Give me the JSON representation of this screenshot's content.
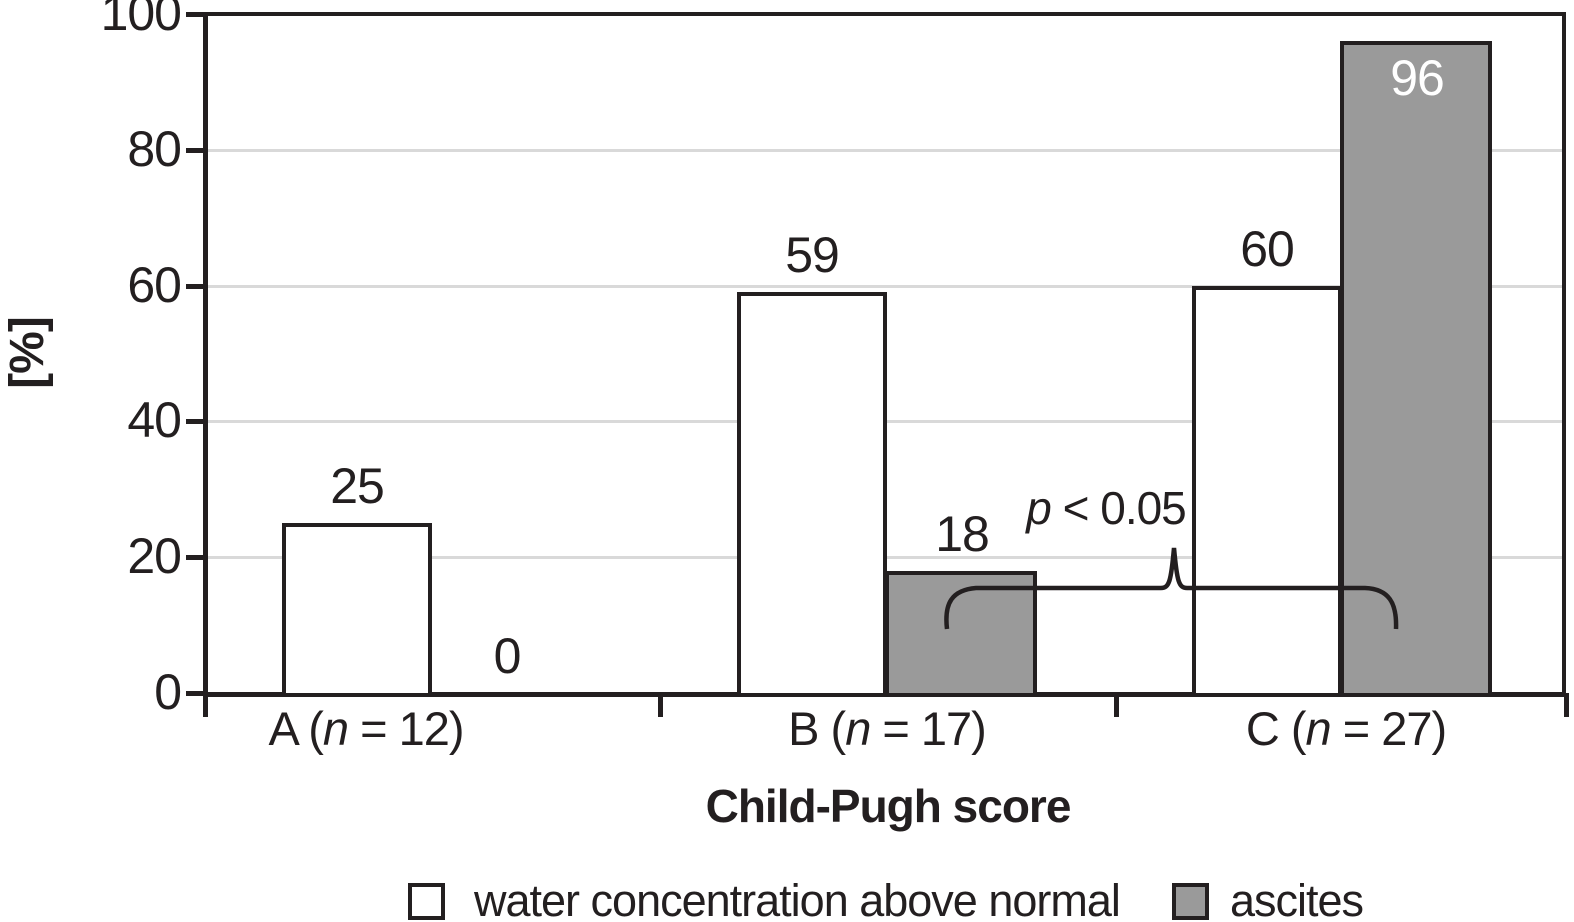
{
  "colors": {
    "ink": "#231f20",
    "grid_line": "#d9d9d9",
    "ascites_gray": "#9a9a9a",
    "background": "#ffffff",
    "inside_label": "#ffffff"
  },
  "chart_data": {
    "type": "bar",
    "title": "",
    "xlabel": "Child-Pugh score",
    "ylabel": "[%]",
    "ylim": [
      0,
      100
    ],
    "yticks": [
      0,
      20,
      40,
      60,
      80,
      100
    ],
    "grid": "horizontal light-gray gridlines at 20/40/60/80; black frame around plot",
    "legend_position": "bottom, below x-axis title",
    "categories": [
      {
        "full": "A (n = 12)",
        "prefix": "A (",
        "n_symbol": "n",
        "suffix": " = 12)"
      },
      {
        "full": "B (n = 17)",
        "prefix": "B (",
        "n_symbol": "n",
        "suffix": " = 17)"
      },
      {
        "full": "C (n = 27)",
        "prefix": "C (",
        "n_symbol": "n",
        "suffix": " = 27)"
      }
    ],
    "series": [
      {
        "name": "water concentration above normal",
        "fill": "#ffffff",
        "values": [
          25,
          59,
          60
        ]
      },
      {
        "name": "ascites",
        "fill": "#9a9a9a",
        "values": [
          0,
          18,
          96
        ]
      }
    ],
    "value_labels": [
      [
        "25",
        "59",
        "60"
      ],
      [
        "0",
        "18",
        "96"
      ]
    ],
    "annotation": {
      "full": "p < 0.05",
      "symbol": "p",
      "text": " < 0.05",
      "connects": "ascites bar of B (18) vs ascites bar of C (96)"
    }
  }
}
